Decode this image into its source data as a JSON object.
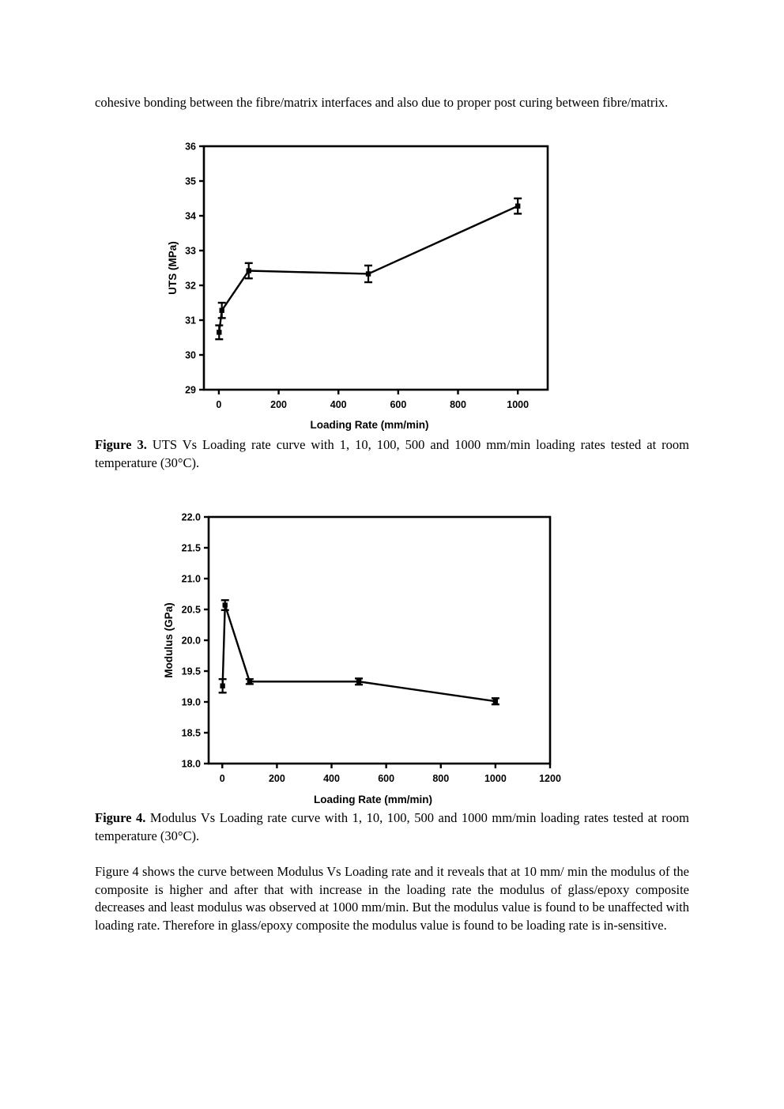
{
  "page": {
    "intro_text": "cohesive bonding between the fibre/matrix interfaces and also due to proper post curing between fibre/matrix.",
    "figure3_label": "Figure 3.",
    "figure3_caption": " UTS Vs Loading rate curve with 1, 10, 100, 500 and 1000 mm/min loading rates tested at room temperature (30°C).",
    "figure4_label": "Figure 4.",
    "figure4_caption": " Modulus Vs Loading rate curve with 1, 10, 100, 500 and 1000 mm/min loading rates tested at room temperature (30°C).",
    "body_text": "Figure 4 shows the curve between Modulus Vs Loading rate and it reveals that at 10   mm/ min the modulus of the composite is higher and after that with increase in the loading rate the modulus of glass/epoxy composite decreases and least modulus was observed at 1000 mm/min. But the modulus value is found to be unaffected with loading rate. Therefore in glass/epoxy composite the modulus value is found to be loading rate is in-sensitive."
  },
  "chart_data": [
    {
      "type": "line",
      "xlabel": "Loading Rate (mm/min)",
      "ylabel": "UTS (MPa)",
      "xlim": [
        -50,
        1100
      ],
      "ylim": [
        29,
        36
      ],
      "xticks": [
        0,
        200,
        400,
        600,
        800,
        1000
      ],
      "xtick_labels": [
        "0",
        "200",
        "400",
        "600",
        "800",
        "1000"
      ],
      "yticks": [
        29,
        30,
        31,
        32,
        33,
        34,
        35,
        36
      ],
      "ytick_labels": [
        "29",
        "30",
        "31",
        "32",
        "33",
        "34",
        "35",
        "36"
      ],
      "x": [
        1,
        10,
        100,
        500,
        1000
      ],
      "y": [
        30.65,
        31.28,
        32.42,
        32.33,
        34.28
      ],
      "yerr": [
        0.2,
        0.22,
        0.22,
        0.24,
        0.22
      ],
      "grid": false
    },
    {
      "type": "line",
      "xlabel": "Loading Rate (mm/min)",
      "ylabel": "Modulus (GPa)",
      "xlim": [
        -50,
        1200
      ],
      "ylim": [
        18.0,
        22.0
      ],
      "xticks": [
        0,
        200,
        400,
        600,
        800,
        1000,
        1200
      ],
      "xtick_labels": [
        "0",
        "200",
        "400",
        "600",
        "800",
        "1000",
        "1200"
      ],
      "yticks": [
        18.0,
        18.5,
        19.0,
        19.5,
        20.0,
        20.5,
        21.0,
        21.5,
        22.0
      ],
      "ytick_labels": [
        "18.0",
        "18.5",
        "19.0",
        "19.5",
        "20.0",
        "20.5",
        "21.0",
        "21.5",
        "22.0"
      ],
      "x": [
        1,
        10,
        100,
        500,
        1000
      ],
      "y": [
        19.26,
        20.57,
        19.33,
        19.33,
        19.01
      ],
      "yerr": [
        0.11,
        0.08,
        0.04,
        0.05,
        0.05
      ],
      "grid": false
    }
  ]
}
